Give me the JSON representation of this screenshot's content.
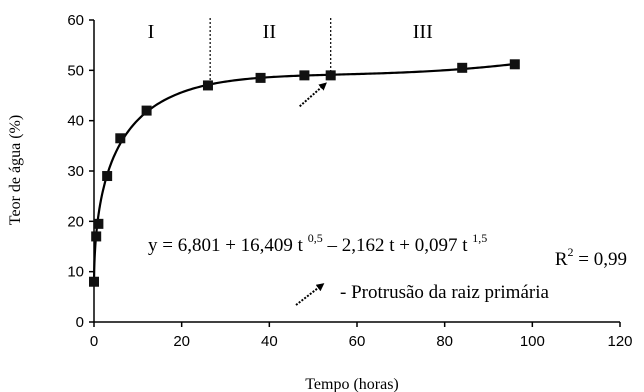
{
  "chart_data": {
    "type": "scatter",
    "xlabel": "Tempo (horas)",
    "ylabel": "Teor de água (%)",
    "xlim": [
      0,
      120
    ],
    "ylim": [
      0,
      60
    ],
    "x_ticks": [
      "0",
      "20",
      "40",
      "60",
      "80",
      "100",
      "120"
    ],
    "y_ticks": [
      "0",
      "10",
      "20",
      "30",
      "40",
      "50",
      "60"
    ],
    "grid": false,
    "points": [
      {
        "x": 0,
        "y": 8
      },
      {
        "x": 0.5,
        "y": 17
      },
      {
        "x": 1,
        "y": 19.5
      },
      {
        "x": 3,
        "y": 29
      },
      {
        "x": 6,
        "y": 36.5
      },
      {
        "x": 12,
        "y": 42
      },
      {
        "x": 26,
        "y": 47
      },
      {
        "x": 38,
        "y": 48.5
      },
      {
        "x": 48,
        "y": 49
      },
      {
        "x": 54,
        "y": 49
      },
      {
        "x": 84,
        "y": 50.5
      },
      {
        "x": 96,
        "y": 51.2
      }
    ],
    "fit": {
      "a": 6.801,
      "b": 16.409,
      "c": -2.162,
      "d": 0.097
    },
    "phase_dividers_x": [
      26.5,
      54
    ],
    "phases": [
      {
        "label": "I",
        "x": 13
      },
      {
        "label": "II",
        "x": 40
      },
      {
        "label": "III",
        "x": 75
      }
    ],
    "equation": {
      "prefix": "y = 6,801 + 16,409 t ",
      "exp1": "0,5",
      "mid": " – 2,162 t + 0,097 t ",
      "exp2": "1,5"
    },
    "r2": {
      "label": "R",
      "exp": "2",
      "value": " = 0,99"
    },
    "arrow_note": "- Protrusão da raiz primária"
  }
}
